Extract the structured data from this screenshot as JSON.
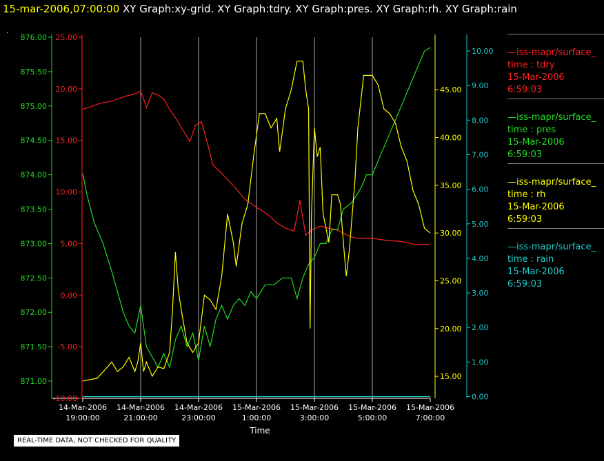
{
  "header": {
    "time": "15-mar-2006,07:00:00",
    "rest": "  XY Graph:xy-grid.  XY Graph:tdry.  XY Graph:pres.  XY Graph:rh.  XY Graph:rain"
  },
  "footer": "REAL-TIME DATA, NOT CHECKED FOR QUALITY",
  "colors": {
    "tdry": "#ff2020",
    "pres": "#22dd22",
    "rh": "#ffff00",
    "rain": "#22cccc",
    "grid": "#aaaaaa",
    "axis": "#ffffff"
  },
  "legend": [
    {
      "line1": "—iss-mapr/surface_",
      "line2": "time : tdry",
      "line3": "15-Mar-2006",
      "line4": "6:59:03",
      "color": "#ff2020"
    },
    {
      "line1": "—iss-mapr/surface_",
      "line2": "time : pres",
      "line3": "15-Mar-2006",
      "line4": "6:59:03",
      "color": "#22dd22"
    },
    {
      "line1": "—iss-mapr/surface_",
      "line2": "time : rh",
      "line3": "15-Mar-2006",
      "line4": "6:59:03",
      "color": "#ffff00"
    },
    {
      "line1": "—iss-mapr/surface_",
      "line2": "time : rain",
      "line3": "15-Mar-2006",
      "line4": "6:59:03",
      "color": "#22cccc"
    }
  ],
  "chart_data": {
    "type": "line",
    "xlabel": "Time",
    "x_ticks": [
      {
        "line1": "14-Mar-2006",
        "line2": "19:00:00"
      },
      {
        "line1": "14-Mar-2006",
        "line2": "21:00:00"
      },
      {
        "line1": "14-Mar-2006",
        "line2": "23:00:00"
      },
      {
        "line1": "15-Mar-2006",
        "line2": "1:00:00"
      },
      {
        "line1": "15-Mar-2006",
        "line2": "3:00:00"
      },
      {
        "line1": "15-Mar-2006",
        "line2": "5:00:00"
      },
      {
        "line1": "15-Mar-2006",
        "line2": "7:00:00"
      }
    ],
    "x_range_hours": [
      0,
      12
    ],
    "grid": true,
    "axes": {
      "pres": {
        "ylim": [
          870.75,
          876.0
        ],
        "ticks": [
          "871.00",
          "871.50",
          "872.00",
          "872.50",
          "873.00",
          "873.50",
          "874.00",
          "874.50",
          "875.00",
          "875.50",
          "876.00"
        ]
      },
      "tdry": {
        "ylim": [
          -10,
          25
        ],
        "ticks": [
          "-10.00",
          "-5.00",
          "0.00",
          "5.00",
          "10.00",
          "15.00",
          "20.00",
          "25.00"
        ]
      },
      "rh": {
        "ylim": [
          12.7,
          50.5
        ],
        "ticks": [
          "15.00",
          "20.00",
          "25.00",
          "30.00",
          "35.00",
          "40.00",
          "45.00"
        ]
      },
      "rain": {
        "ylim": [
          -0.05,
          10.4
        ],
        "ticks": [
          "0.00",
          "1.00",
          "2.00",
          "3.00",
          "4.00",
          "5.00",
          "6.00",
          "7.00",
          "8.00",
          "9.00",
          "10.00"
        ]
      }
    },
    "series": [
      {
        "name": "tdry",
        "axis": "tdry",
        "points": [
          [
            0,
            18.0
          ],
          [
            0.3,
            18.3
          ],
          [
            0.6,
            18.6
          ],
          [
            1.0,
            18.8
          ],
          [
            1.5,
            19.3
          ],
          [
            1.8,
            19.5
          ],
          [
            2.0,
            19.8
          ],
          [
            2.2,
            18.2
          ],
          [
            2.4,
            19.6
          ],
          [
            2.6,
            19.4
          ],
          [
            2.8,
            19.0
          ],
          [
            3.0,
            18.0
          ],
          [
            3.2,
            17.2
          ],
          [
            3.5,
            15.8
          ],
          [
            3.7,
            14.9
          ],
          [
            3.9,
            16.5
          ],
          [
            4.1,
            16.8
          ],
          [
            4.3,
            14.8
          ],
          [
            4.5,
            12.6
          ],
          [
            4.8,
            11.8
          ],
          [
            5.0,
            11.2
          ],
          [
            5.3,
            10.3
          ],
          [
            5.6,
            9.3
          ],
          [
            6.0,
            8.5
          ],
          [
            6.4,
            7.8
          ],
          [
            6.7,
            7.0
          ],
          [
            7.0,
            6.5
          ],
          [
            7.3,
            6.2
          ],
          [
            7.5,
            9.2
          ],
          [
            7.7,
            5.8
          ],
          [
            7.9,
            6.3
          ],
          [
            8.2,
            6.7
          ],
          [
            8.5,
            6.5
          ],
          [
            8.8,
            6.3
          ],
          [
            9.2,
            5.7
          ],
          [
            9.5,
            5.5
          ],
          [
            10.0,
            5.5
          ],
          [
            10.5,
            5.3
          ],
          [
            11.0,
            5.2
          ],
          [
            11.5,
            4.9
          ],
          [
            12.0,
            4.9
          ]
        ]
      },
      {
        "name": "pres",
        "axis": "pres",
        "points": [
          [
            0,
            874.02
          ],
          [
            0.15,
            873.7
          ],
          [
            0.4,
            873.3
          ],
          [
            0.7,
            873.0
          ],
          [
            1.0,
            872.6
          ],
          [
            1.2,
            872.3
          ],
          [
            1.4,
            872.0
          ],
          [
            1.6,
            871.8
          ],
          [
            1.8,
            871.7
          ],
          [
            2.0,
            872.1
          ],
          [
            2.2,
            871.5
          ],
          [
            2.4,
            871.35
          ],
          [
            2.6,
            871.2
          ],
          [
            2.8,
            871.4
          ],
          [
            3.0,
            871.2
          ],
          [
            3.2,
            871.6
          ],
          [
            3.4,
            871.8
          ],
          [
            3.6,
            871.5
          ],
          [
            3.8,
            871.7
          ],
          [
            4.0,
            871.3
          ],
          [
            4.2,
            871.8
          ],
          [
            4.4,
            871.5
          ],
          [
            4.6,
            871.9
          ],
          [
            4.8,
            872.1
          ],
          [
            5.0,
            871.9
          ],
          [
            5.2,
            872.1
          ],
          [
            5.4,
            872.2
          ],
          [
            5.6,
            872.1
          ],
          [
            5.8,
            872.3
          ],
          [
            6.0,
            872.2
          ],
          [
            6.3,
            872.4
          ],
          [
            6.6,
            872.4
          ],
          [
            6.9,
            872.5
          ],
          [
            7.2,
            872.5
          ],
          [
            7.4,
            872.2
          ],
          [
            7.6,
            872.5
          ],
          [
            7.8,
            872.7
          ],
          [
            8.0,
            872.8
          ],
          [
            8.2,
            873.0
          ],
          [
            8.4,
            873.0
          ],
          [
            8.6,
            873.2
          ],
          [
            8.8,
            873.2
          ],
          [
            9.0,
            873.5
          ],
          [
            9.3,
            873.6
          ],
          [
            9.6,
            873.8
          ],
          [
            9.8,
            874.0
          ],
          [
            10.0,
            874.0
          ],
          [
            10.3,
            874.3
          ],
          [
            10.6,
            874.6
          ],
          [
            10.9,
            874.9
          ],
          [
            11.2,
            875.2
          ],
          [
            11.5,
            875.5
          ],
          [
            11.8,
            875.8
          ],
          [
            12.0,
            875.85
          ]
        ]
      },
      {
        "name": "rh",
        "axis": "rh",
        "points": [
          [
            0,
            14.5
          ],
          [
            0.5,
            14.8
          ],
          [
            0.8,
            15.8
          ],
          [
            1.0,
            16.5
          ],
          [
            1.2,
            15.5
          ],
          [
            1.4,
            16.0
          ],
          [
            1.6,
            17.0
          ],
          [
            1.8,
            15.5
          ],
          [
            1.9,
            16.5
          ],
          [
            2.0,
            18.5
          ],
          [
            2.1,
            15.5
          ],
          [
            2.2,
            16.5
          ],
          [
            2.4,
            15.0
          ],
          [
            2.6,
            16.0
          ],
          [
            2.8,
            15.8
          ],
          [
            3.0,
            17.5
          ],
          [
            3.1,
            22.0
          ],
          [
            3.2,
            28.0
          ],
          [
            3.3,
            24.0
          ],
          [
            3.4,
            22.0
          ],
          [
            3.6,
            18.5
          ],
          [
            3.8,
            17.5
          ],
          [
            4.0,
            18.5
          ],
          [
            4.2,
            23.5
          ],
          [
            4.4,
            23.0
          ],
          [
            4.6,
            22.0
          ],
          [
            4.8,
            25.5
          ],
          [
            5.0,
            32.0
          ],
          [
            5.2,
            29.0
          ],
          [
            5.3,
            26.5
          ],
          [
            5.5,
            31.0
          ],
          [
            5.7,
            33.0
          ],
          [
            5.9,
            38.0
          ],
          [
            6.1,
            42.5
          ],
          [
            6.3,
            42.5
          ],
          [
            6.5,
            41.0
          ],
          [
            6.7,
            42.0
          ],
          [
            6.8,
            38.5
          ],
          [
            7.0,
            43.0
          ],
          [
            7.2,
            45.0
          ],
          [
            7.4,
            48.0
          ],
          [
            7.6,
            48.0
          ],
          [
            7.7,
            45.0
          ],
          [
            7.8,
            43.0
          ],
          [
            7.85,
            20.0
          ],
          [
            7.9,
            32.0
          ],
          [
            8.0,
            41.0
          ],
          [
            8.1,
            38.0
          ],
          [
            8.2,
            39.0
          ],
          [
            8.3,
            32.0
          ],
          [
            8.5,
            29.0
          ],
          [
            8.6,
            34.0
          ],
          [
            8.8,
            34.0
          ],
          [
            8.9,
            33.0
          ],
          [
            9.0,
            29.0
          ],
          [
            9.1,
            25.5
          ],
          [
            9.2,
            28.0
          ],
          [
            9.4,
            35.5
          ],
          [
            9.5,
            41.0
          ],
          [
            9.7,
            46.5
          ],
          [
            10.0,
            46.5
          ],
          [
            10.2,
            45.5
          ],
          [
            10.4,
            43.0
          ],
          [
            10.6,
            42.5
          ],
          [
            10.8,
            41.5
          ],
          [
            11.0,
            39.0
          ],
          [
            11.2,
            37.5
          ],
          [
            11.4,
            34.5
          ],
          [
            11.6,
            33.0
          ],
          [
            11.8,
            30.5
          ],
          [
            12.0,
            30.0
          ]
        ]
      },
      {
        "name": "rain",
        "axis": "rain",
        "points": [
          [
            0,
            0.0
          ],
          [
            12,
            0.0
          ]
        ]
      }
    ]
  }
}
